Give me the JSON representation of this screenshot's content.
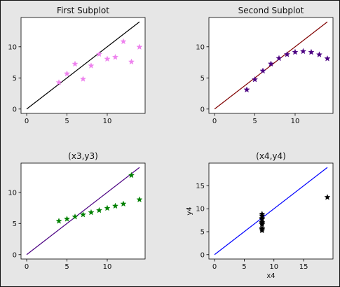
{
  "figure": {
    "background": "#e6e6e6",
    "axes_background": "#ffffff"
  },
  "chart_data": [
    {
      "type": "scatter",
      "title": "First Subplot",
      "xlabel": "",
      "ylabel": "",
      "xlim": [
        -0.7,
        14.7
      ],
      "ylim": [
        -0.7,
        14.7
      ],
      "xticks": [
        0,
        5,
        10
      ],
      "yticks": [
        0,
        5,
        10
      ],
      "line": {
        "x": [
          0,
          14
        ],
        "y": [
          0,
          14
        ],
        "color": "#000000"
      },
      "marker_color": "#ee82ee",
      "x": [
        10,
        8,
        13,
        9,
        11,
        14,
        6,
        4,
        12,
        7,
        5
      ],
      "y": [
        8.04,
        6.95,
        7.58,
        8.81,
        8.33,
        9.96,
        7.24,
        4.26,
        10.84,
        4.82,
        5.68
      ]
    },
    {
      "type": "scatter",
      "title": "Second Subplot",
      "xlabel": "",
      "ylabel": "",
      "xlim": [
        -0.7,
        14.7
      ],
      "ylim": [
        -0.7,
        14.7
      ],
      "xticks": [
        0,
        5,
        10
      ],
      "yticks": [
        0,
        5,
        10
      ],
      "line": {
        "x": [
          0,
          14
        ],
        "y": [
          0,
          14
        ],
        "color": "#800000"
      },
      "marker_color": "#4b0082",
      "x": [
        10,
        8,
        13,
        9,
        11,
        14,
        6,
        4,
        12,
        7,
        5
      ],
      "y": [
        9.14,
        8.14,
        8.74,
        8.77,
        9.26,
        8.1,
        6.13,
        3.1,
        9.13,
        7.26,
        4.74
      ]
    },
    {
      "type": "scatter",
      "title": "(x3,y3)",
      "xlabel": "",
      "ylabel": "",
      "xlim": [
        -0.7,
        14.7
      ],
      "ylim": [
        -0.7,
        14.7
      ],
      "xticks": [
        0,
        5,
        10
      ],
      "yticks": [
        0,
        5,
        10
      ],
      "line": {
        "x": [
          0,
          14
        ],
        "y": [
          0,
          14
        ],
        "color": "#4b0082"
      },
      "marker_color": "#008000",
      "x": [
        10,
        8,
        13,
        9,
        11,
        14,
        6,
        4,
        12,
        7,
        5
      ],
      "y": [
        7.46,
        6.77,
        12.74,
        7.11,
        7.81,
        8.84,
        6.08,
        5.39,
        8.15,
        6.42,
        5.73
      ]
    },
    {
      "type": "scatter",
      "title": "(x4,y4)",
      "xlabel": "x4",
      "ylabel": "y4",
      "xlim": [
        -0.95,
        19.95
      ],
      "ylim": [
        -0.95,
        19.95
      ],
      "xticks": [
        0,
        5,
        10,
        15
      ],
      "yticks": [
        0,
        5,
        10,
        15
      ],
      "line": {
        "x": [
          0,
          19
        ],
        "y": [
          0,
          19
        ],
        "color": "#0000ff"
      },
      "marker_color": "#000000",
      "x": [
        8,
        8,
        8,
        8,
        8,
        8,
        8,
        19,
        8,
        8,
        8
      ],
      "y": [
        6.58,
        5.76,
        7.71,
        8.84,
        8.47,
        7.04,
        5.25,
        12.5,
        5.56,
        7.91,
        6.89
      ]
    }
  ]
}
